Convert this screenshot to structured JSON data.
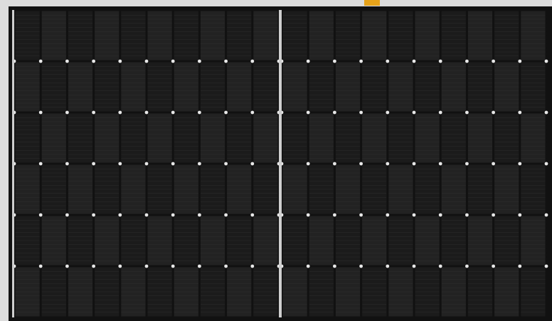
{
  "photo": {
    "subject": "solar-panel",
    "cell_layout": {
      "halves": 2,
      "columns_per_half": 10,
      "rows": 6
    },
    "colors": {
      "background": "#dcdcdc",
      "frame": "#111111",
      "cell": "#1b1b1b",
      "cell_alt": "#222222",
      "grid_line": "#e8e8e8",
      "bus_line": "#3a3a3a",
      "tab": "#e6a21a"
    }
  }
}
